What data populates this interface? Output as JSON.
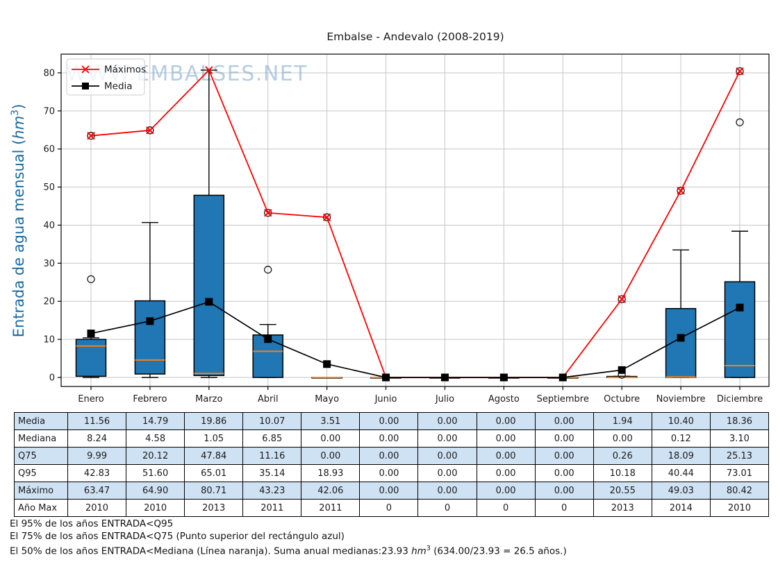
{
  "title": "Embalse - Andevalo (2008-2019)",
  "watermark": "WWW.EMBALSES.NET",
  "y_axis": {
    "label_prefix": "Entrada de agua mensual (",
    "label_unit": "hm",
    "label_sup": "3",
    "label_suffix": ")",
    "ticks": [
      0,
      10,
      20,
      30,
      40,
      50,
      60,
      70,
      80
    ],
    "label_color": "#1b699f"
  },
  "legend": [
    {
      "label": "Máximos",
      "color": "#fe0000",
      "marker": "x"
    },
    {
      "label": "Media",
      "color": "#000000",
      "marker": "square"
    }
  ],
  "months": [
    "Enero",
    "Febrero",
    "Marzo",
    "Abril",
    "Mayo",
    "Junio",
    "Julio",
    "Agosto",
    "Septiembre",
    "Octubre",
    "Noviembre",
    "Diciembre"
  ],
  "chart_data": {
    "type": "box",
    "categories": [
      "Enero",
      "Febrero",
      "Marzo",
      "Abril",
      "Mayo",
      "Junio",
      "Julio",
      "Agosto",
      "Septiembre",
      "Octubre",
      "Noviembre",
      "Diciembre"
    ],
    "title": "Embalse - Andevalo (2008-2019)",
    "ylabel": "Entrada de agua mensual (hm3)",
    "ylim": [
      -2.5,
      85
    ],
    "grid": true,
    "legend_position": "upper left",
    "colors": {
      "box_fill": "#2077b4",
      "box_edge": "#000000",
      "median": "#ff7f0e",
      "max_line": "#fe0000",
      "mean_line": "#000000",
      "gridline": "#c6c6c6"
    },
    "boxes": [
      {
        "month": "Enero",
        "q1": 0.3,
        "median": 8.24,
        "q3": 9.99,
        "whisker_low": 0,
        "whisker_high": 10.4,
        "outliers": [
          25.8,
          63.47
        ]
      },
      {
        "month": "Febrero",
        "q1": 0.9,
        "median": 4.58,
        "q3": 20.12,
        "whisker_low": 0,
        "whisker_high": 40.7,
        "outliers": [
          64.9
        ]
      },
      {
        "month": "Marzo",
        "q1": 0.5,
        "median": 1.05,
        "q3": 47.84,
        "whisker_low": 0,
        "whisker_high": 80.71,
        "outliers": []
      },
      {
        "month": "Abril",
        "q1": 0.0,
        "median": 6.85,
        "q3": 11.16,
        "whisker_low": 0,
        "whisker_high": 13.9,
        "outliers": [
          28.3,
          43.23
        ]
      },
      {
        "month": "Mayo",
        "q1": 0.0,
        "median": 0.0,
        "q3": 0.0,
        "whisker_low": 0,
        "whisker_high": 0,
        "outliers": [
          42.06
        ]
      },
      {
        "month": "Junio",
        "q1": 0.0,
        "median": 0.0,
        "q3": 0.0,
        "whisker_low": 0,
        "whisker_high": 0,
        "outliers": []
      },
      {
        "month": "Julio",
        "q1": 0.0,
        "median": 0.0,
        "q3": 0.0,
        "whisker_low": 0,
        "whisker_high": 0,
        "outliers": []
      },
      {
        "month": "Agosto",
        "q1": 0.0,
        "median": 0.0,
        "q3": 0.0,
        "whisker_low": 0,
        "whisker_high": 0,
        "outliers": []
      },
      {
        "month": "Septiembre",
        "q1": 0.0,
        "median": 0.0,
        "q3": 0.0,
        "whisker_low": 0,
        "whisker_high": 0,
        "outliers": []
      },
      {
        "month": "Octubre",
        "q1": 0.0,
        "median": 0.0,
        "q3": 0.26,
        "whisker_low": 0,
        "whisker_high": 0.3,
        "outliers": [
          0.7,
          20.55
        ]
      },
      {
        "month": "Noviembre",
        "q1": 0.0,
        "median": 0.12,
        "q3": 18.09,
        "whisker_low": 0,
        "whisker_high": 33.5,
        "outliers": [
          49.03
        ]
      },
      {
        "month": "Diciembre",
        "q1": 0.0,
        "median": 3.1,
        "q3": 25.13,
        "whisker_low": 0,
        "whisker_high": 38.4,
        "outliers": [
          67.0,
          80.42
        ]
      }
    ],
    "series": [
      {
        "name": "Máximos",
        "values": [
          63.47,
          64.9,
          80.71,
          43.23,
          42.06,
          0,
          0,
          0,
          0,
          20.55,
          49.03,
          80.42
        ]
      },
      {
        "name": "Media",
        "values": [
          11.56,
          14.79,
          19.86,
          10.07,
          3.51,
          0,
          0,
          0,
          0,
          1.94,
          10.4,
          18.36
        ]
      }
    ]
  },
  "table": {
    "alt_row_fill": "#cfe2f3",
    "rows": [
      {
        "label": "Media",
        "values": [
          "11.56",
          "14.79",
          "19.86",
          "10.07",
          "3.51",
          "0.00",
          "0.00",
          "0.00",
          "0.00",
          "1.94",
          "10.40",
          "18.36"
        ]
      },
      {
        "label": "Mediana",
        "values": [
          "8.24",
          "4.58",
          "1.05",
          "6.85",
          "0.00",
          "0.00",
          "0.00",
          "0.00",
          "0.00",
          "0.00",
          "0.12",
          "3.10"
        ]
      },
      {
        "label": "Q75",
        "values": [
          "9.99",
          "20.12",
          "47.84",
          "11.16",
          "0.00",
          "0.00",
          "0.00",
          "0.00",
          "0.00",
          "0.26",
          "18.09",
          "25.13"
        ]
      },
      {
        "label": "Q95",
        "values": [
          "42.83",
          "51.60",
          "65.01",
          "35.14",
          "18.93",
          "0.00",
          "0.00",
          "0.00",
          "0.00",
          "10.18",
          "40.44",
          "73.01"
        ]
      },
      {
        "label": "Máximo",
        "values": [
          "63.47",
          "64.90",
          "80.71",
          "43.23",
          "42.06",
          "0.00",
          "0.00",
          "0.00",
          "0.00",
          "20.55",
          "49.03",
          "80.42"
        ]
      },
      {
        "label": "Año Max",
        "values": [
          "2010",
          "2010",
          "2013",
          "2011",
          "2011",
          "0",
          "0",
          "0",
          "0",
          "2013",
          "2014",
          "2010"
        ]
      }
    ]
  },
  "footnotes": {
    "line1": "El 95% de los años ENTRADA<Q95",
    "line2": "El 75% de los años ENTRADA<Q75 (Punto superior del rectángulo azul)",
    "line3_prefix": "El 50% de los años ENTRADA<Mediana (Línea naranja). Suma anual medianas:23.93 ",
    "line3_unit": "hm",
    "line3_sup": "3",
    "line3_suffix": " (634.00/23.93 = 26.5 años.)"
  }
}
